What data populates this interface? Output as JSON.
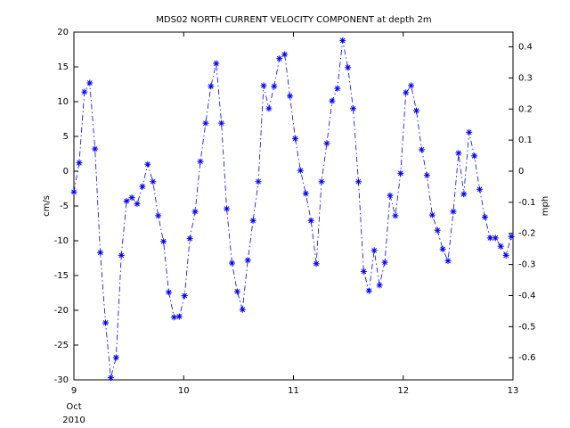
{
  "chart_data": {
    "type": "line",
    "title": "MDS02 NORTH CURRENT VELOCITY COMPONENT at depth 2m",
    "y_label": "cm/s",
    "y2_label": "mph",
    "xtick_sublabels": [
      "Oct",
      "2010"
    ],
    "x": [
      9,
      9.048,
      9.096,
      9.144,
      9.192,
      9.24,
      9.288,
      9.336,
      9.384,
      9.432,
      9.48,
      9.528,
      9.576,
      9.624,
      9.672,
      9.72,
      9.768,
      9.816,
      9.864,
      9.912,
      9.96,
      10.008,
      10.056,
      10.104,
      10.152,
      10.2,
      10.248,
      10.296,
      10.344,
      10.392,
      10.44,
      10.488,
      10.536,
      10.584,
      10.632,
      10.68,
      10.728,
      10.776,
      10.824,
      10.872,
      10.92,
      10.968,
      11.016,
      11.064,
      11.112,
      11.16,
      11.208,
      11.256,
      11.304,
      11.352,
      11.4,
      11.448,
      11.496,
      11.544,
      11.592,
      11.64,
      11.688,
      11.736,
      11.784,
      11.832,
      11.88,
      11.928,
      11.976,
      12.024,
      12.072,
      12.12,
      12.168,
      12.216,
      12.264,
      12.312,
      12.36,
      12.408,
      12.456,
      12.504,
      12.552,
      12.6,
      12.648,
      12.696,
      12.744,
      12.792,
      12.84,
      12.888,
      12.936,
      12.984
    ],
    "series": [
      {
        "color": "#0000ff",
        "values": [
          -3.0,
          1.2,
          11.4,
          12.7,
          3.2,
          -11.7,
          -21.8,
          -29.7,
          -26.8,
          -12.1,
          -4.3,
          -3.8,
          -4.7,
          -2.2,
          1.0,
          -1.5,
          -6.4,
          -10.1,
          -17.4,
          -21.0,
          -20.9,
          -17.9,
          -9.7,
          -5.8,
          1.4,
          6.9,
          12.2,
          15.5,
          6.9,
          -5.4,
          -13.2,
          -17.3,
          -19.9,
          -12.8,
          -7.1,
          -1.5,
          12.3,
          9.0,
          12.2,
          16.2,
          16.8,
          10.8,
          4.7,
          0.1,
          -3.2,
          -7.1,
          -13.3,
          -1.5,
          4.0,
          10.1,
          11.9,
          18.8,
          14.9,
          9.0,
          -1.5,
          -14.4,
          -17.2,
          -11.4,
          -16.4,
          -13.1,
          -3.5,
          -6.4,
          -0.3,
          11.3,
          12.3,
          8.7,
          3.1,
          -0.6,
          -6.3,
          -8.5,
          -11.2,
          -12.9,
          -5.8,
          2.6,
          -3.3,
          5.6,
          2.2,
          -2.6,
          -6.6,
          -9.6,
          -9.6,
          -10.8,
          -12.1,
          -9.4
        ]
      }
    ],
    "xlim": [
      9,
      13
    ],
    "xticks": [
      9,
      10,
      11,
      12,
      13
    ],
    "ylim": [
      -30,
      20
    ],
    "yticks": [
      -30,
      -25,
      -20,
      -15,
      -10,
      -5,
      0,
      5,
      10,
      15,
      20
    ],
    "y2lim": [
      -0.6711,
      0.4474
    ],
    "y2ticks": [
      -0.6,
      -0.5,
      -0.4,
      -0.3,
      -0.2,
      -0.1,
      0,
      0.1,
      0.2,
      0.3,
      0.4
    ]
  }
}
